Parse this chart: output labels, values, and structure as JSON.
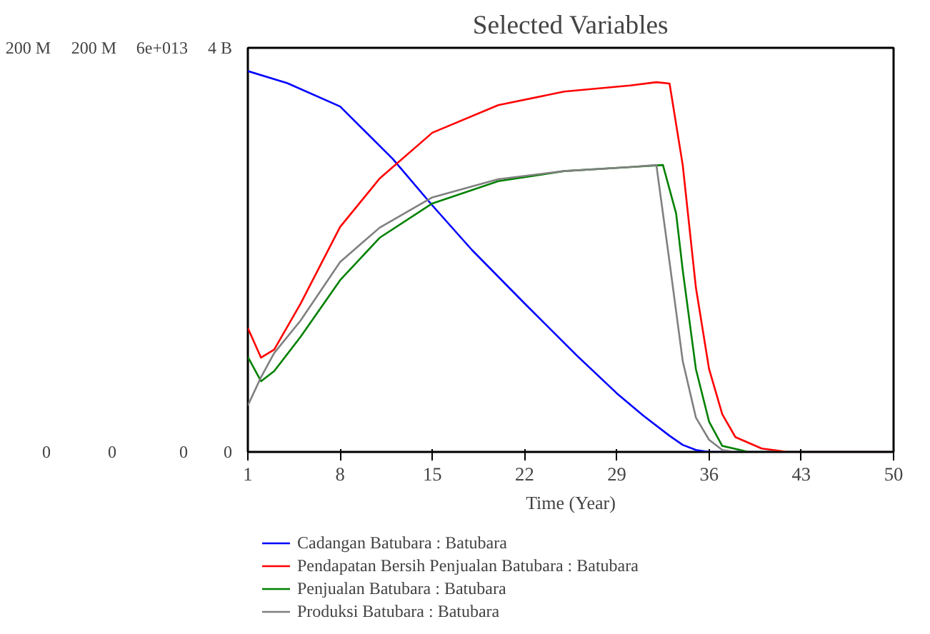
{
  "chart_data": {
    "type": "line",
    "title": "Selected Variables",
    "xlabel": "Time (Year)",
    "xlim": [
      1,
      50
    ],
    "xticks": [
      1,
      8,
      15,
      22,
      29,
      36,
      43,
      50
    ],
    "ylim": [
      0,
      4000000000
    ],
    "yticks": [
      {
        "value": 0,
        "label": "0"
      },
      {
        "value": 4000000000,
        "label": "4 B"
      }
    ],
    "y2lim": [
      0,
      60000000000000
    ],
    "y2ticks": [
      {
        "value": 0,
        "label": "0"
      },
      {
        "value": 60000000000000,
        "label": "6e+013"
      }
    ],
    "y3lim": [
      0,
      200000000
    ],
    "y3ticks": [
      {
        "value": 0,
        "label": "0"
      },
      {
        "value": 200000000,
        "label": "200 M"
      }
    ],
    "grid": false,
    "legend": "bottom",
    "series": [
      {
        "name": "Cadangan Batubara : Batubara",
        "color": "#0000ff",
        "axis": "y",
        "x": [
          1,
          4,
          8,
          12,
          15,
          18,
          22,
          26,
          29,
          31,
          33,
          34,
          35,
          36,
          50
        ],
        "values": [
          3770000000,
          3650000000,
          3420000000,
          2900000000,
          2440000000,
          2000000000,
          1470000000,
          950000000,
          580000000,
          360000000,
          160000000,
          70000000,
          20000000,
          0,
          0
        ]
      },
      {
        "name": "Pendapatan Bersih Penjualan Batubara : Batubara",
        "color": "#ff0000",
        "axis": "y2",
        "x": [
          1,
          2,
          3,
          5,
          8,
          11,
          15,
          20,
          25,
          30,
          32,
          33,
          34,
          35,
          36,
          37,
          38,
          40,
          42,
          50
        ],
        "values": [
          18400000000000,
          14000000000000,
          15200000000000,
          22000000000000,
          33400000000000,
          40600000000000,
          47400000000000,
          51500000000000,
          53500000000000,
          54400000000000,
          54900000000000,
          54700000000000,
          42600000000000,
          24400000000000,
          12300000000000,
          5600000000000,
          2200000000000,
          500000000000,
          0,
          0
        ]
      },
      {
        "name": "Penjualan Batubara : Batubara",
        "color": "#008000",
        "axis": "y3",
        "x": [
          1,
          2,
          3,
          5,
          8,
          11,
          15,
          20,
          25,
          30,
          32.5,
          33.5,
          34,
          35,
          36,
          37,
          39,
          50
        ],
        "values": [
          47000000,
          35000000,
          40000000,
          57000000,
          85000000,
          106000000,
          123000000,
          134000000,
          139000000,
          141000000,
          142000000,
          118000000,
          90000000,
          41000000,
          15000000,
          3000000,
          0,
          0
        ]
      },
      {
        "name": "Produksi Batubara : Batubara",
        "color": "#808080",
        "axis": "y3",
        "x": [
          1,
          2,
          3,
          5,
          8,
          11,
          15,
          20,
          25,
          30,
          32,
          33,
          34,
          35,
          36,
          37,
          38,
          50
        ],
        "values": [
          23000000,
          37000000,
          49000000,
          65000000,
          94000000,
          111000000,
          126000000,
          135000000,
          139000000,
          141000000,
          142000000,
          94000000,
          45000000,
          17000000,
          6000000,
          1000000,
          0,
          0
        ]
      }
    ]
  }
}
